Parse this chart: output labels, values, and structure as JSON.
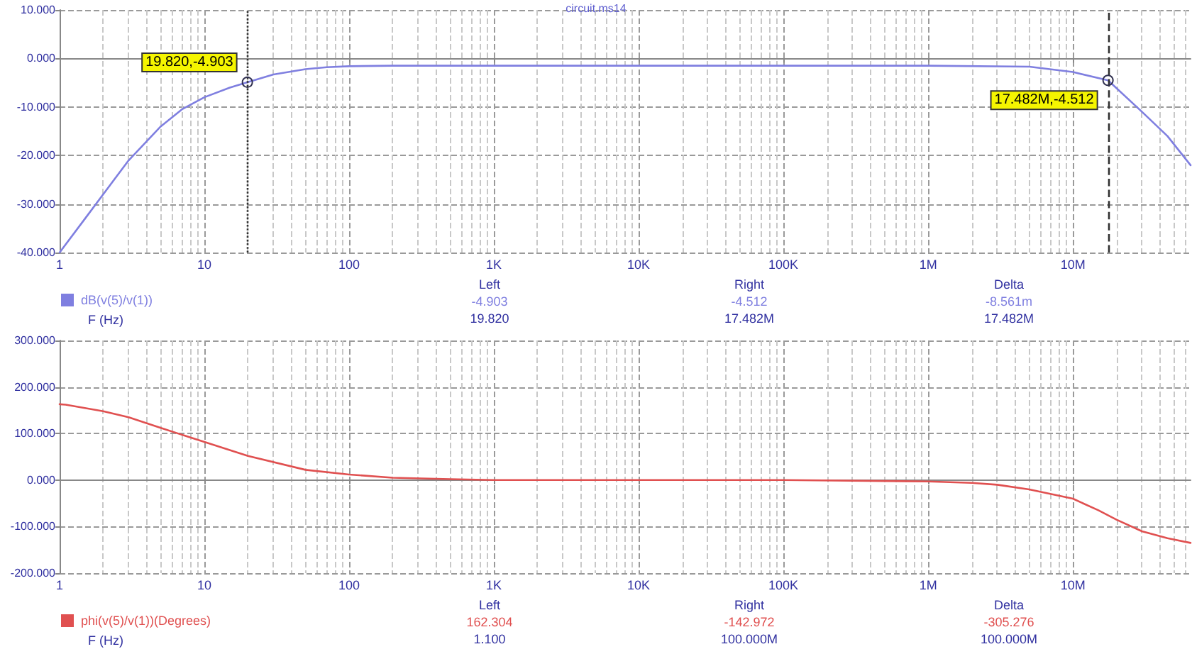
{
  "chart_data": [
    {
      "type": "line",
      "title": "circuit.ms14",
      "xlim": [
        1,
        65000000
      ],
      "ylim": [
        -40,
        10
      ],
      "log": "x",
      "grid": true,
      "legend": "bottom left",
      "marker": "none",
      "line_style": "solid",
      "xticks": [
        1,
        10,
        100,
        {
          "value": 1000,
          "label": "1K"
        },
        {
          "value": 10000,
          "label": "10K"
        },
        {
          "value": 100000,
          "label": "100K"
        },
        {
          "value": 1000000,
          "label": "1M"
        },
        {
          "value": 10000000,
          "label": "10M"
        }
      ],
      "yticks": [
        {
          "value": -40,
          "label": "-40.000"
        },
        {
          "value": -30,
          "label": "-30.000"
        },
        {
          "value": -20,
          "label": "-20.000"
        },
        {
          "value": -10,
          "label": "-10.000"
        },
        {
          "value": 0,
          "label": "0.000"
        },
        {
          "value": 10,
          "label": "10.000"
        }
      ],
      "series": [
        {
          "name": "dB(v(5)/v(1))",
          "color": "#7f7fe0",
          "x": [
            1,
            1.5,
            2,
            3,
            5,
            7,
            10,
            15,
            19.82,
            30,
            50,
            70,
            100,
            200,
            1000,
            100000,
            1000000,
            5000000,
            10000000,
            17482000,
            30000000,
            45000000,
            65000000
          ],
          "values": [
            -40,
            -33,
            -28,
            -21,
            -14,
            -10.5,
            -8,
            -6,
            -4.9,
            -3.3,
            -2.2,
            -1.8,
            -1.6,
            -1.5,
            -1.5,
            -1.5,
            -1.5,
            -1.7,
            -2.8,
            -4.5,
            -11,
            -16,
            -22
          ]
        }
      ],
      "ref_lines": [
        {
          "axis": "x",
          "value": 19.82,
          "color": "#303030",
          "line_style": "dotted"
        },
        {
          "axis": "x",
          "value": 17482000,
          "color": "#303030",
          "line_style": "dashed"
        }
      ],
      "annotations": [
        {
          "text": "19.820,-4.903",
          "x": 19.82,
          "y": -4.903
        },
        {
          "text": "17.482M,-4.512",
          "x": 17482000,
          "y": -4.512
        },
        "F (Hz)",
        "Left",
        "-4.903",
        "19.820",
        "Right",
        "-4.512",
        "17.482M",
        "Delta",
        "-8.561m",
        "17.482M"
      ]
    },
    {
      "type": "line",
      "xlim": [
        1,
        65000000
      ],
      "ylim": [
        -200,
        300
      ],
      "log": "x",
      "grid": true,
      "legend": "bottom left",
      "marker": "none",
      "line_style": "solid",
      "xticks": [
        1,
        10,
        100,
        {
          "value": 1000,
          "label": "1K"
        },
        {
          "value": 10000,
          "label": "10K"
        },
        {
          "value": 100000,
          "label": "100K"
        },
        {
          "value": 1000000,
          "label": "1M"
        },
        {
          "value": 10000000,
          "label": "10M"
        }
      ],
      "yticks": [
        {
          "value": -200,
          "label": "-200.000"
        },
        {
          "value": -100,
          "label": "-100.000"
        },
        {
          "value": 0,
          "label": "0.000"
        },
        {
          "value": 100,
          "label": "100.000"
        },
        {
          "value": 200,
          "label": "200.000"
        },
        {
          "value": 300,
          "label": "300.000"
        }
      ],
      "series": [
        {
          "name": "phi(v(5)/v(1))(Degrees)",
          "color": "#e05050",
          "x": [
            1,
            1.1,
            2,
            3,
            5,
            10,
            20,
            50,
            100,
            200,
            500,
            1000,
            100000,
            1000000,
            2000000,
            3000000,
            5000000,
            10000000,
            15000000,
            20000000,
            30000000,
            45000000,
            65000000
          ],
          "values": [
            163,
            162,
            148,
            135,
            112,
            82,
            52,
            22,
            12,
            5,
            2,
            0,
            0,
            -3,
            -6,
            -10,
            -20,
            -40,
            -65,
            -85,
            -110,
            -125,
            -135
          ]
        }
      ],
      "annotations": [
        "F (Hz)",
        "Left",
        "162.304",
        "1.100",
        "Right",
        "-142.972",
        "100.000M",
        "Delta",
        "-305.276",
        "100.000M"
      ]
    }
  ]
}
